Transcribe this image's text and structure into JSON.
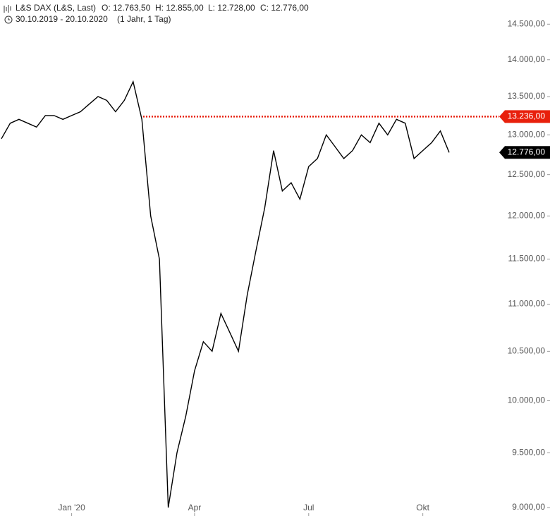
{
  "chart_data": {
    "type": "line",
    "title": "L&S DAX (L&S, Last)",
    "ohlc": [
      "O: 12.763,50",
      "H: 12.855,00",
      "L: 12.728,00",
      "C: 12.776,00"
    ],
    "subtitle": "30.10.2019 - 20.10.2020",
    "period": "(1 Jahr, 1 Tag)",
    "categories": [
      null,
      null,
      null,
      null,
      null,
      null,
      null,
      null,
      "Jan '20",
      null,
      null,
      null,
      null,
      null,
      null,
      null,
      null,
      null,
      null,
      null,
      null,
      null,
      "Apr",
      null,
      null,
      null,
      null,
      null,
      null,
      null,
      null,
      null,
      null,
      null,
      null,
      "Jul",
      null,
      null,
      null,
      null,
      null,
      null,
      null,
      null,
      null,
      null,
      null,
      null,
      "Okt",
      null,
      null,
      null
    ],
    "series": [
      {
        "color": "#000000",
        "values": [
          12950,
          13150,
          13200,
          13150,
          13100,
          13250,
          13250,
          13200,
          13250,
          13300,
          13400,
          13500,
          13450,
          13300,
          13450,
          13700,
          13200,
          12000,
          11500,
          9000,
          9500,
          9850,
          10300,
          10600,
          10500,
          10900,
          10700,
          10500,
          11100,
          11600,
          12100,
          12800,
          12300,
          12400,
          12200,
          12600,
          12700,
          13000,
          12850,
          12700,
          12800,
          13000,
          12900,
          13150,
          13000,
          13200,
          13150,
          12700,
          12800,
          12900,
          13050,
          12776
        ]
      }
    ],
    "ylim": [
      8925,
      14850
    ],
    "log_scale": true,
    "yticks": [
      {
        "value": 9000,
        "label": "9.000,00"
      },
      {
        "value": 9500,
        "label": "9.500,00"
      },
      {
        "value": 10000,
        "label": "10.000,00"
      },
      {
        "value": 10500,
        "label": "10.500,00"
      },
      {
        "value": 11000,
        "label": "11.000,00"
      },
      {
        "value": 11500,
        "label": "11.500,00"
      },
      {
        "value": 12000,
        "label": "12.000,00"
      },
      {
        "value": 12500,
        "label": "12.500,00"
      },
      {
        "value": 13000,
        "label": "13.000,00"
      },
      {
        "value": 13500,
        "label": "13.500,00"
      },
      {
        "value": 14000,
        "label": "14.000,00"
      },
      {
        "value": 14500,
        "label": "14.500,00"
      }
    ],
    "reference_line": {
      "value": 13236,
      "label": "13.236,00",
      "color": "#e8200c"
    },
    "last_price": {
      "value": 12776,
      "label": "12.776,00",
      "color": "#000000"
    }
  }
}
